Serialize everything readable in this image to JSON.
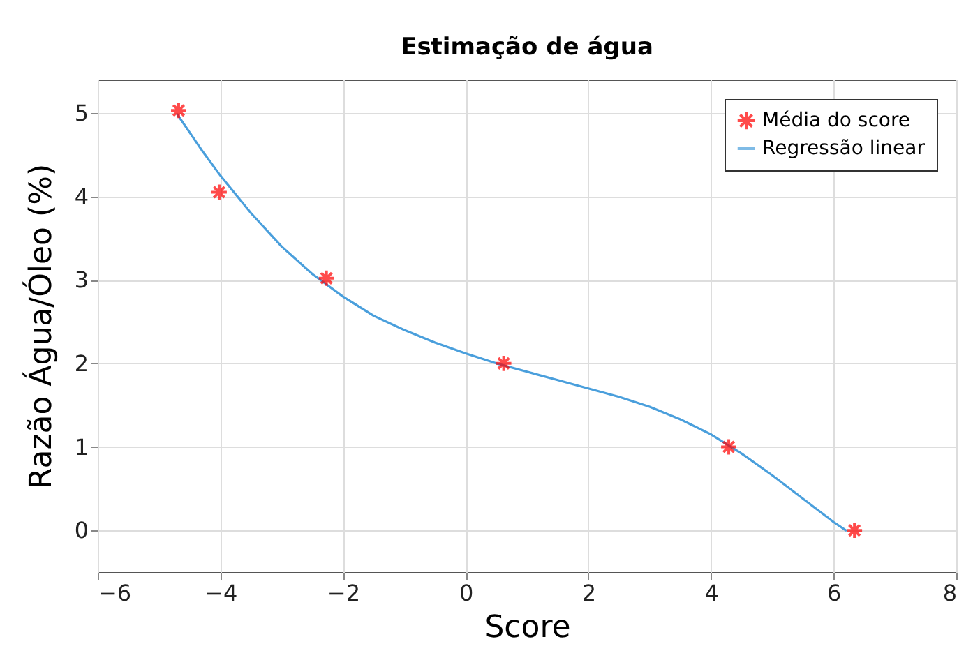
{
  "chart_data": {
    "type": "scatter",
    "title": "Estimação de água",
    "xlabel": "Score",
    "ylabel": "Razão Água/Óleo (%)",
    "xlim": [
      -6,
      8
    ],
    "xticks": [
      -6,
      -4,
      -2,
      0,
      2,
      4,
      6,
      8
    ],
    "ylim": [
      -0.5,
      5.4
    ],
    "yticks": [
      0,
      1,
      2,
      3,
      4,
      5
    ],
    "grid": true,
    "legend": "top right",
    "series": [
      {
        "name": "Média do score",
        "marker": "cross",
        "color": "#ff0000",
        "x": [
          -4.68,
          -4.02,
          -2.27,
          0.62,
          4.29,
          6.34
        ],
        "values": [
          5.03,
          4.05,
          3.02,
          2.0,
          1.0,
          0.0
        ]
      },
      {
        "name": "Regressão linear",
        "type": "line",
        "line_style": "solid",
        "color": "#4a9fdc",
        "x": [
          -4.7,
          -4.3,
          -4,
          -3.5,
          -3,
          -2.5,
          -2,
          -1.5,
          -1,
          -0.5,
          0,
          0.5,
          1,
          1.5,
          2,
          2.5,
          3,
          3.5,
          4,
          4.5,
          5,
          5.5,
          6,
          6.2
        ],
        "values": [
          4.98,
          4.55,
          4.25,
          3.8,
          3.4,
          3.07,
          2.8,
          2.57,
          2.4,
          2.25,
          2.12,
          2.0,
          1.9,
          1.8,
          1.7,
          1.6,
          1.48,
          1.33,
          1.15,
          0.92,
          0.66,
          0.38,
          0.1,
          0.0
        ]
      }
    ]
  }
}
